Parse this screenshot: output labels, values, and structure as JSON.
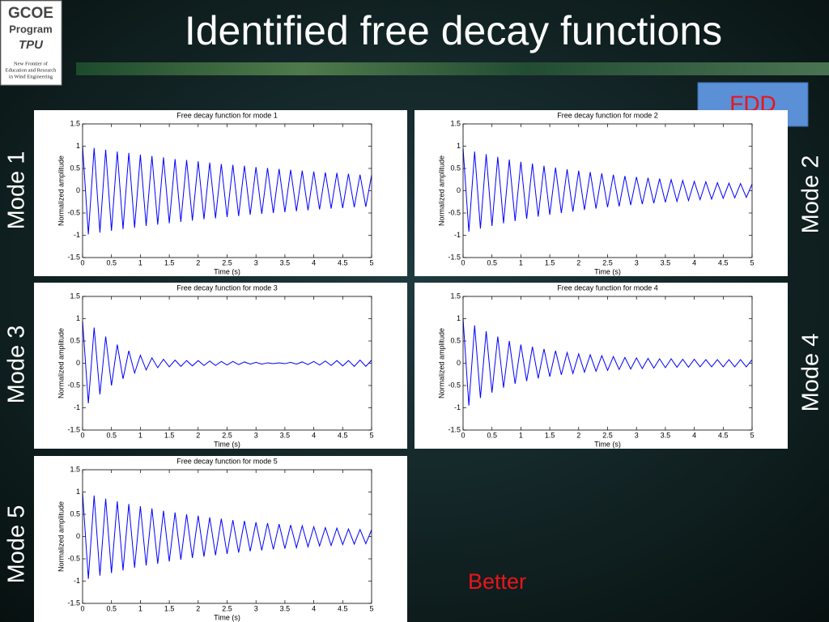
{
  "slide": {
    "title": "Identified free decay functions",
    "logo": {
      "line1": "GCOE",
      "line2": "Program",
      "line3": "TPU",
      "caption": [
        "New Frontier of",
        "Education and Research",
        "in Wind Engineering"
      ]
    },
    "badge": "FDD",
    "mode_labels": [
      "Mode 1",
      "Mode 2",
      "Mode 3",
      "Mode 4",
      "Mode 5"
    ],
    "note": "Better"
  },
  "chart_data": [
    {
      "type": "line",
      "title": "Free decay function for mode 1",
      "x_label": "Time (s)",
      "y_label": "Normalized amplitude",
      "color": "#0000ff",
      "xlim": [
        0,
        5
      ],
      "ylim": [
        -1.5,
        1.5
      ],
      "xticks": [
        0,
        0.5,
        1,
        1.5,
        2,
        2.5,
        3,
        3.5,
        4,
        4.5,
        5
      ],
      "yticks": [
        -1.5,
        -1,
        -0.5,
        0,
        0.5,
        1,
        1.5
      ],
      "x": [
        0,
        0.1,
        0.2,
        0.3,
        0.4,
        0.5,
        0.6,
        0.7,
        0.8,
        0.9,
        1,
        1.1,
        1.2,
        1.3,
        1.4,
        1.5,
        1.6,
        1.7,
        1.8,
        1.9,
        2,
        2.1,
        2.2,
        2.3,
        2.4,
        2.5,
        2.6,
        2.7,
        2.8,
        2.9,
        3,
        3.1,
        3.2,
        3.3,
        3.4,
        3.5,
        3.6,
        3.7,
        3.8,
        3.9,
        4,
        4.1,
        4.2,
        4.3,
        4.4,
        4.5,
        4.6,
        4.7,
        4.8,
        4.9,
        5
      ],
      "values": [
        1.0,
        -0.98,
        0.96,
        -0.94,
        0.92,
        -0.9,
        0.88,
        -0.86,
        0.85,
        -0.83,
        0.81,
        -0.79,
        0.78,
        -0.76,
        0.75,
        -0.73,
        0.71,
        -0.7,
        0.69,
        -0.67,
        0.66,
        -0.64,
        0.63,
        -0.62,
        0.6,
        -0.59,
        0.58,
        -0.57,
        0.56,
        -0.54,
        0.53,
        -0.52,
        0.51,
        -0.5,
        0.49,
        -0.48,
        0.47,
        -0.46,
        0.45,
        -0.44,
        0.43,
        -0.42,
        0.41,
        -0.4,
        0.4,
        -0.39,
        0.38,
        -0.37,
        0.36,
        -0.36,
        0.35
      ]
    },
    {
      "type": "line",
      "title": "Free decay function for mode 2",
      "x_label": "Time (s)",
      "y_label": "Normalized amplitude",
      "color": "#0000ff",
      "xlim": [
        0,
        5
      ],
      "ylim": [
        -1.5,
        1.5
      ],
      "xticks": [
        0,
        0.5,
        1,
        1.5,
        2,
        2.5,
        3,
        3.5,
        4,
        4.5,
        5
      ],
      "yticks": [
        -1.5,
        -1,
        -0.5,
        0,
        0.5,
        1,
        1.5
      ],
      "x": [
        0,
        0.1,
        0.2,
        0.3,
        0.4,
        0.5,
        0.6,
        0.7,
        0.8,
        0.9,
        1,
        1.1,
        1.2,
        1.3,
        1.4,
        1.5,
        1.6,
        1.7,
        1.8,
        1.9,
        2,
        2.1,
        2.2,
        2.3,
        2.4,
        2.5,
        2.6,
        2.7,
        2.8,
        2.9,
        3,
        3.1,
        3.2,
        3.3,
        3.4,
        3.5,
        3.6,
        3.7,
        3.8,
        3.9,
        4,
        4.1,
        4.2,
        4.3,
        4.4,
        4.5,
        4.6,
        4.7,
        4.8,
        4.9,
        5
      ],
      "values": [
        0.95,
        -0.92,
        0.88,
        -0.85,
        0.82,
        -0.79,
        0.76,
        -0.73,
        0.7,
        -0.68,
        0.65,
        -0.63,
        0.61,
        -0.58,
        0.56,
        -0.54,
        0.52,
        -0.5,
        0.48,
        -0.47,
        0.45,
        -0.43,
        0.42,
        -0.4,
        0.39,
        -0.37,
        0.36,
        -0.35,
        0.33,
        -0.32,
        0.31,
        -0.3,
        0.29,
        -0.28,
        0.27,
        -0.26,
        0.25,
        -0.24,
        0.23,
        -0.22,
        0.21,
        -0.2,
        0.2,
        -0.19,
        0.18,
        -0.17,
        0.17,
        -0.16,
        0.16,
        -0.15,
        0.15
      ]
    },
    {
      "type": "line",
      "title": "Free decay function for mode 3",
      "x_label": "Time (s)",
      "y_label": "Normalized amplitude",
      "color": "#0000ff",
      "xlim": [
        0,
        5
      ],
      "ylim": [
        -1.5,
        1.5
      ],
      "xticks": [
        0,
        0.5,
        1,
        1.5,
        2,
        2.5,
        3,
        3.5,
        4,
        4.5,
        5
      ],
      "yticks": [
        -1.5,
        -1,
        -0.5,
        0,
        0.5,
        1,
        1.5
      ],
      "x": [
        0,
        0.1,
        0.2,
        0.3,
        0.4,
        0.5,
        0.6,
        0.7,
        0.8,
        0.9,
        1,
        1.1,
        1.2,
        1.3,
        1.4,
        1.5,
        1.6,
        1.7,
        1.8,
        1.9,
        2,
        2.1,
        2.2,
        2.3,
        2.4,
        2.5,
        2.6,
        2.7,
        2.8,
        2.9,
        3,
        3.1,
        3.2,
        3.3,
        3.4,
        3.5,
        3.6,
        3.7,
        3.8,
        3.9,
        4,
        4.1,
        4.2,
        4.3,
        4.4,
        4.5,
        4.6,
        4.7,
        4.8,
        4.9,
        5
      ],
      "values": [
        0.95,
        -0.9,
        0.8,
        -0.7,
        0.6,
        -0.5,
        0.42,
        -0.35,
        0.28,
        -0.22,
        0.18,
        -0.15,
        0.12,
        -0.1,
        0.09,
        -0.08,
        0.07,
        -0.07,
        0.06,
        -0.06,
        0.06,
        -0.05,
        0.05,
        -0.05,
        0.04,
        -0.04,
        0.04,
        -0.03,
        0.03,
        -0.02,
        0.02,
        -0.02,
        0.01,
        -0.01,
        0.01,
        -0.01,
        0.02,
        -0.02,
        0.03,
        -0.03,
        0.04,
        -0.04,
        0.05,
        -0.05,
        0.06,
        -0.06,
        0.06,
        -0.07,
        0.07,
        -0.07,
        0.07
      ]
    },
    {
      "type": "line",
      "title": "Free decay function for mode 4",
      "x_label": "Time (s)",
      "y_label": "Normalized amplitude",
      "color": "#0000ff",
      "xlim": [
        0,
        5
      ],
      "ylim": [
        -1.5,
        1.5
      ],
      "xticks": [
        0,
        0.5,
        1,
        1.5,
        2,
        2.5,
        3,
        3.5,
        4,
        4.5,
        5
      ],
      "yticks": [
        -1.5,
        -1,
        -0.5,
        0,
        0.5,
        1,
        1.5
      ],
      "x": [
        0,
        0.1,
        0.2,
        0.3,
        0.4,
        0.5,
        0.6,
        0.7,
        0.8,
        0.9,
        1,
        1.1,
        1.2,
        1.3,
        1.4,
        1.5,
        1.6,
        1.7,
        1.8,
        1.9,
        2,
        2.1,
        2.2,
        2.3,
        2.4,
        2.5,
        2.6,
        2.7,
        2.8,
        2.9,
        3,
        3.1,
        3.2,
        3.3,
        3.4,
        3.5,
        3.6,
        3.7,
        3.8,
        3.9,
        4,
        4.1,
        4.2,
        4.3,
        4.4,
        4.5,
        4.6,
        4.7,
        4.8,
        4.9,
        5
      ],
      "values": [
        1.0,
        -0.95,
        0.85,
        -0.78,
        0.72,
        -0.66,
        0.6,
        -0.55,
        0.5,
        -0.46,
        0.42,
        -0.4,
        0.37,
        -0.34,
        0.32,
        -0.3,
        0.28,
        -0.26,
        0.24,
        -0.23,
        0.21,
        -0.2,
        0.19,
        -0.18,
        0.17,
        -0.16,
        0.15,
        -0.14,
        0.13,
        -0.13,
        0.12,
        -0.12,
        0.11,
        -0.11,
        0.1,
        -0.1,
        0.1,
        -0.09,
        0.09,
        -0.09,
        0.09,
        -0.08,
        0.08,
        -0.08,
        0.08,
        -0.08,
        0.08,
        -0.08,
        0.08,
        -0.08,
        0.08
      ]
    },
    {
      "type": "line",
      "title": "Free decay function for mode 5",
      "x_label": "Time (s)",
      "y_label": "Normalized amplitude",
      "color": "#0000ff",
      "xlim": [
        0,
        5
      ],
      "ylim": [
        -1.5,
        1.5
      ],
      "xticks": [
        0,
        0.5,
        1,
        1.5,
        2,
        2.5,
        3,
        3.5,
        4,
        4.5,
        5
      ],
      "yticks": [
        -1.5,
        -1,
        -0.5,
        0,
        0.5,
        1,
        1.5
      ],
      "x": [
        0,
        0.1,
        0.2,
        0.3,
        0.4,
        0.5,
        0.6,
        0.7,
        0.8,
        0.9,
        1,
        1.1,
        1.2,
        1.3,
        1.4,
        1.5,
        1.6,
        1.7,
        1.8,
        1.9,
        2,
        2.1,
        2.2,
        2.3,
        2.4,
        2.5,
        2.6,
        2.7,
        2.8,
        2.9,
        3,
        3.1,
        3.2,
        3.3,
        3.4,
        3.5,
        3.6,
        3.7,
        3.8,
        3.9,
        4,
        4.1,
        4.2,
        4.3,
        4.4,
        4.5,
        4.6,
        4.7,
        4.8,
        4.9,
        5
      ],
      "values": [
        0.98,
        -0.95,
        0.92,
        -0.88,
        0.85,
        -0.82,
        0.79,
        -0.76,
        0.73,
        -0.7,
        0.68,
        -0.65,
        0.63,
        -0.61,
        0.58,
        -0.56,
        0.54,
        -0.52,
        0.5,
        -0.48,
        0.47,
        -0.45,
        0.43,
        -0.42,
        0.4,
        -0.39,
        0.37,
        -0.36,
        0.35,
        -0.33,
        0.32,
        -0.31,
        0.3,
        -0.29,
        0.28,
        -0.27,
        0.26,
        -0.25,
        0.24,
        -0.23,
        0.22,
        -0.21,
        0.2,
        -0.2,
        0.19,
        -0.18,
        0.17,
        -0.17,
        0.16,
        -0.16,
        0.15
      ]
    }
  ]
}
